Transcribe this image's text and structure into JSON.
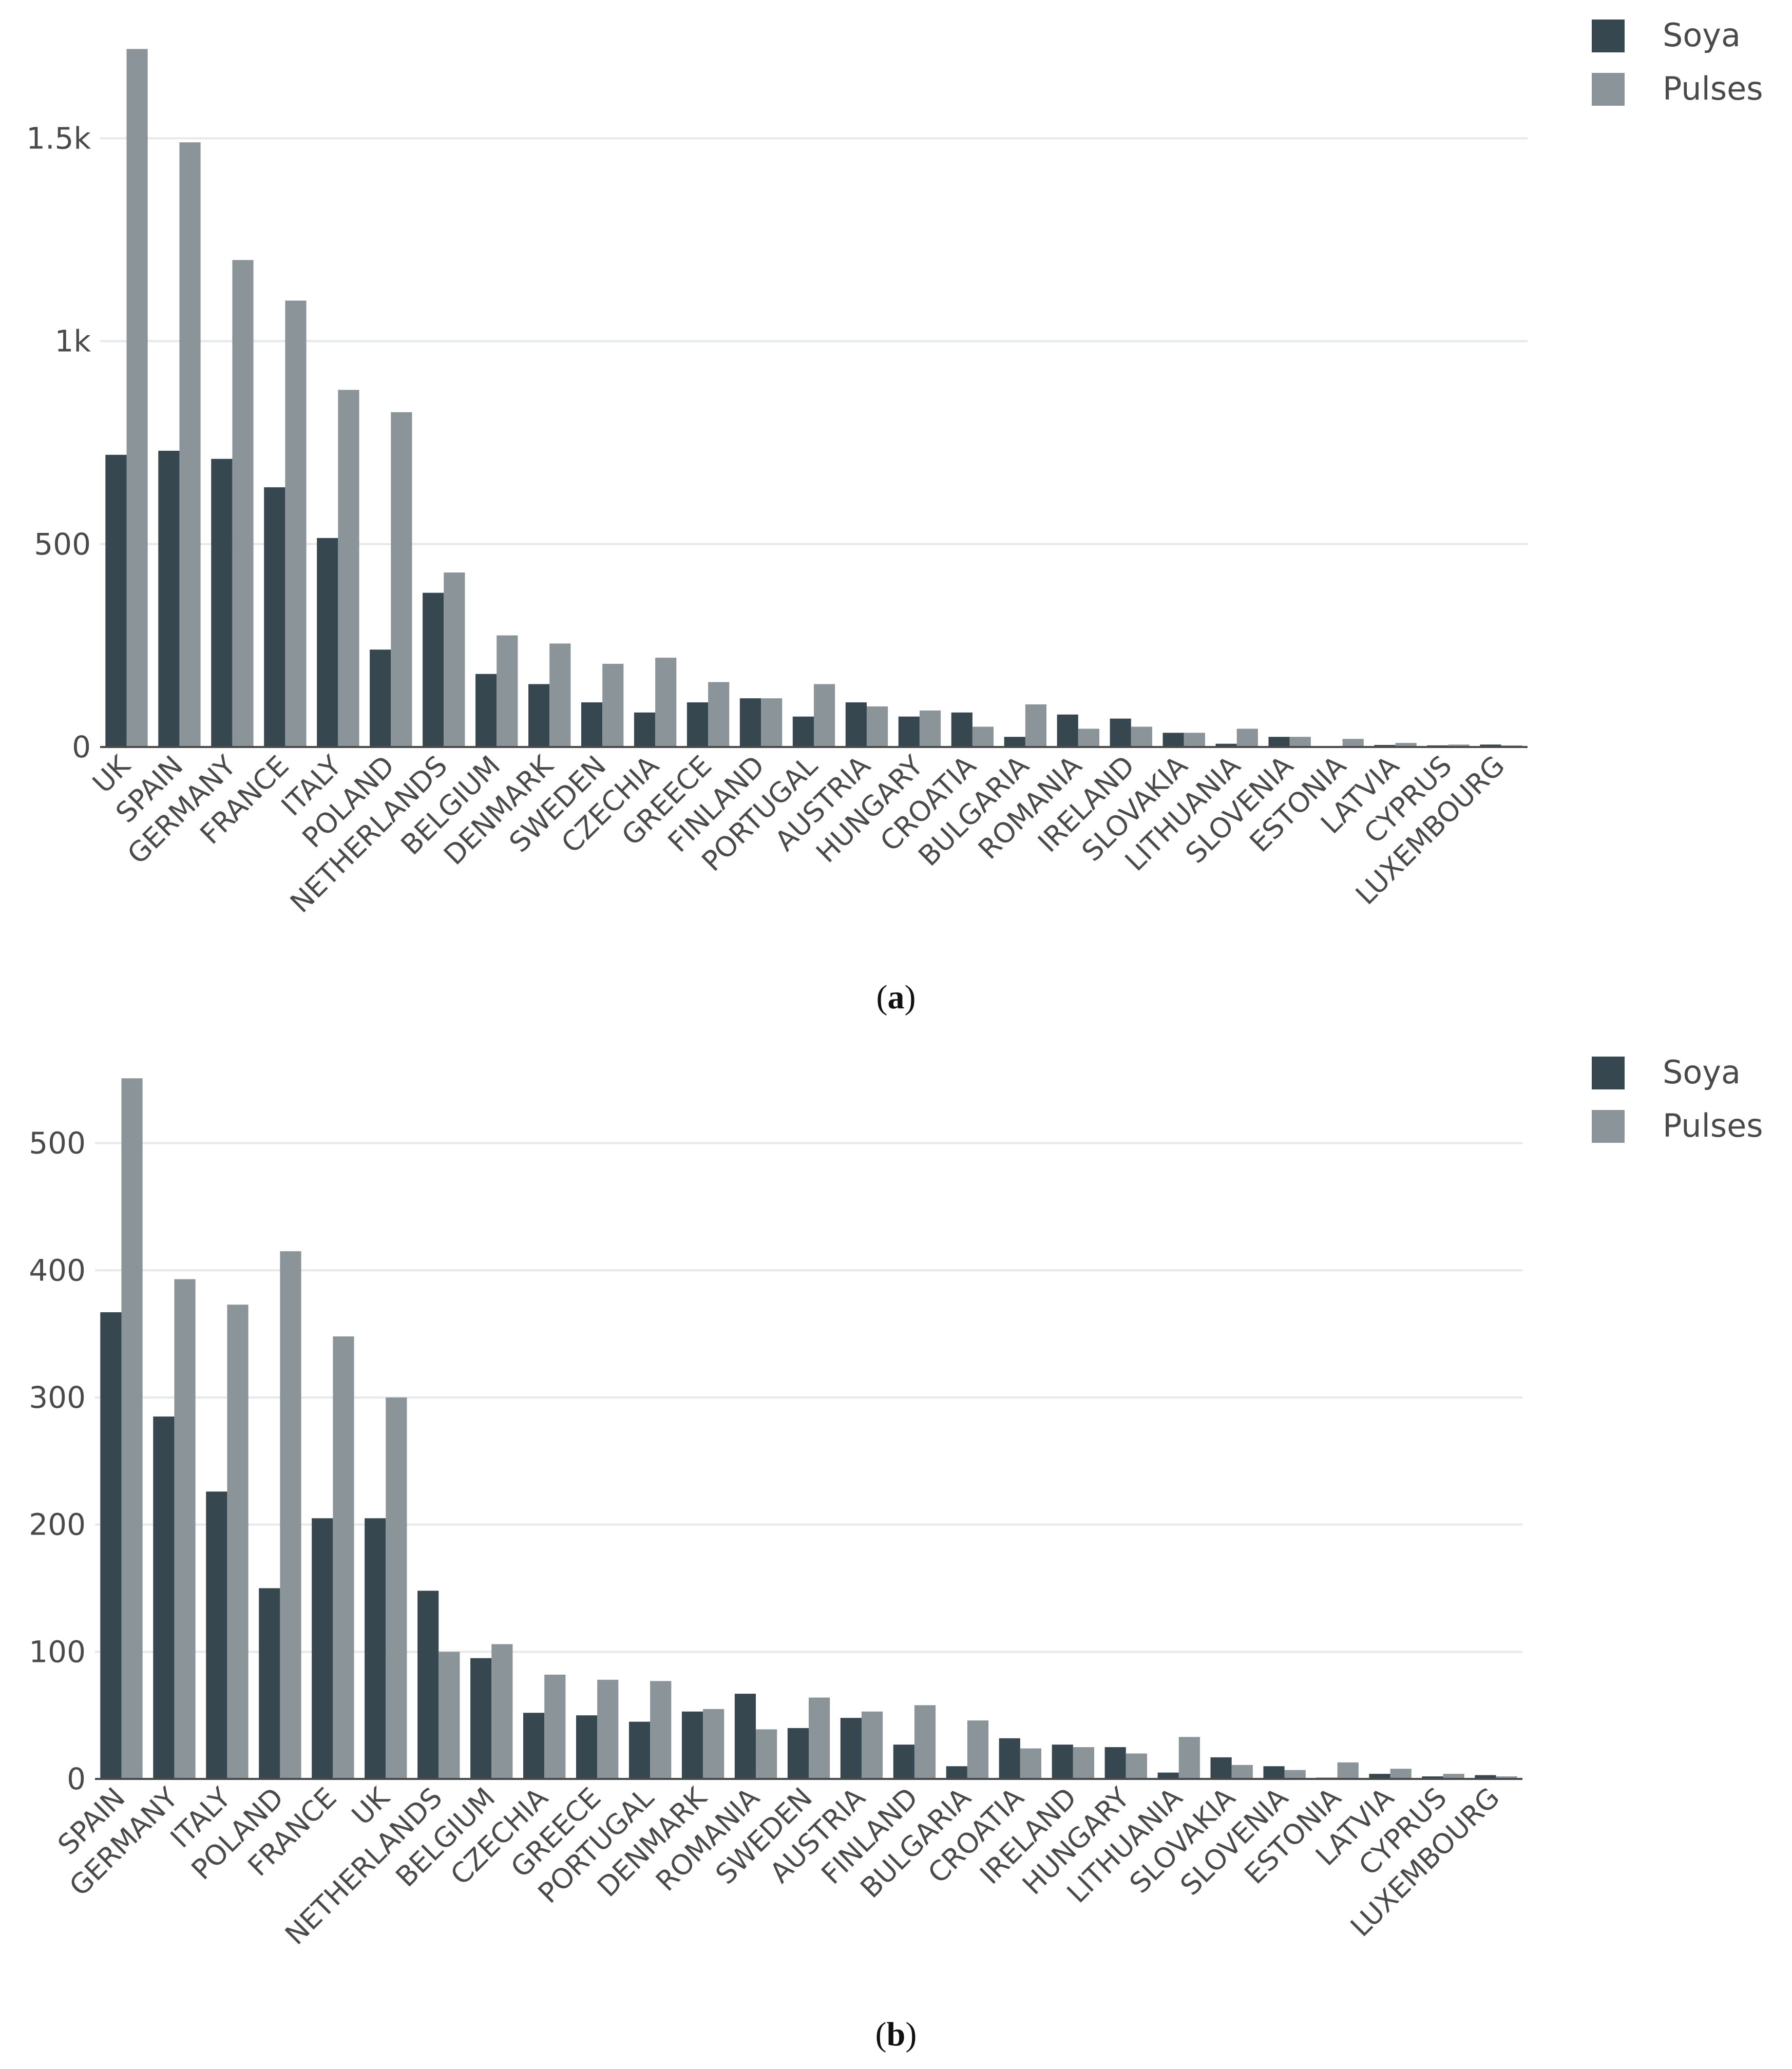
{
  "colors": {
    "soya": "#37474f",
    "pulses": "#8a9499",
    "grid": "#e6e9ec",
    "axis": "#4a4a4a",
    "text": "#4a4a4a"
  },
  "chart_data": [
    {
      "id": "a",
      "type": "bar",
      "caption": "a",
      "categories": [
        "UK",
        "SPAIN",
        "GERMANY",
        "FRANCE",
        "ITALY",
        "POLAND",
        "NETHERLANDS",
        "BELGIUM",
        "DENMARK",
        "SWEDEN",
        "CZECHIA",
        "GREECE",
        "FINLAND",
        "PORTUGAL",
        "AUSTRIA",
        "HUNGARY",
        "CROATIA",
        "BULGARIA",
        "ROMANIA",
        "IRELAND",
        "SLOVAKIA",
        "LITHUANIA",
        "SLOVENIA",
        "ESTONIA",
        "LATVIA",
        "CYPRUS",
        "LUXEMBOURG"
      ],
      "series": [
        {
          "name": "Soya",
          "values": [
            720,
            730,
            710,
            640,
            515,
            240,
            380,
            180,
            155,
            110,
            85,
            110,
            120,
            75,
            110,
            75,
            85,
            25,
            80,
            70,
            35,
            8,
            25,
            2,
            5,
            4,
            6
          ]
        },
        {
          "name": "Pulses",
          "values": [
            1720,
            1490,
            1200,
            1100,
            880,
            825,
            430,
            275,
            255,
            205,
            220,
            160,
            120,
            155,
            100,
            90,
            50,
            105,
            45,
            50,
            35,
            45,
            25,
            20,
            10,
            6,
            4
          ]
        }
      ],
      "yticks": [
        0,
        500,
        1000,
        1500
      ],
      "ytick_labels": [
        "0",
        "500",
        "1k",
        "1.5k"
      ],
      "ylim": [
        0,
        1780
      ],
      "legend": [
        "Soya",
        "Pulses"
      ]
    },
    {
      "id": "b",
      "type": "bar",
      "caption": "b",
      "categories": [
        "SPAIN",
        "GERMANY",
        "ITALY",
        "POLAND",
        "FRANCE",
        "UK",
        "NETHERLANDS",
        "BELGIUM",
        "CZECHIA",
        "GREECE",
        "PORTUGAL",
        "DENMARK",
        "ROMANIA",
        "SWEDEN",
        "AUSTRIA",
        "FINLAND",
        "BULGARIA",
        "CROATIA",
        "IRELAND",
        "HUNGARY",
        "LITHUANIA",
        "SLOVAKIA",
        "SLOVENIA",
        "ESTONIA",
        "LATVIA",
        "CYPRUS",
        "LUXEMBOURG"
      ],
      "series": [
        {
          "name": "Soya",
          "values": [
            367,
            285,
            226,
            150,
            205,
            205,
            148,
            95,
            52,
            50,
            45,
            53,
            67,
            40,
            48,
            27,
            10,
            32,
            27,
            25,
            5,
            17,
            10,
            1,
            4,
            2,
            3
          ]
        },
        {
          "name": "Pulses",
          "values": [
            551,
            393,
            373,
            415,
            348,
            300,
            100,
            106,
            82,
            78,
            77,
            55,
            39,
            64,
            53,
            58,
            46,
            24,
            25,
            20,
            33,
            11,
            7,
            13,
            8,
            4,
            2
          ]
        }
      ],
      "yticks": [
        0,
        100,
        200,
        300,
        400,
        500
      ],
      "ytick_labels": [
        "0",
        "100",
        "200",
        "300",
        "400",
        "500"
      ],
      "ylim": [
        0,
        560
      ],
      "legend": [
        "Soya",
        "Pulses"
      ]
    }
  ]
}
